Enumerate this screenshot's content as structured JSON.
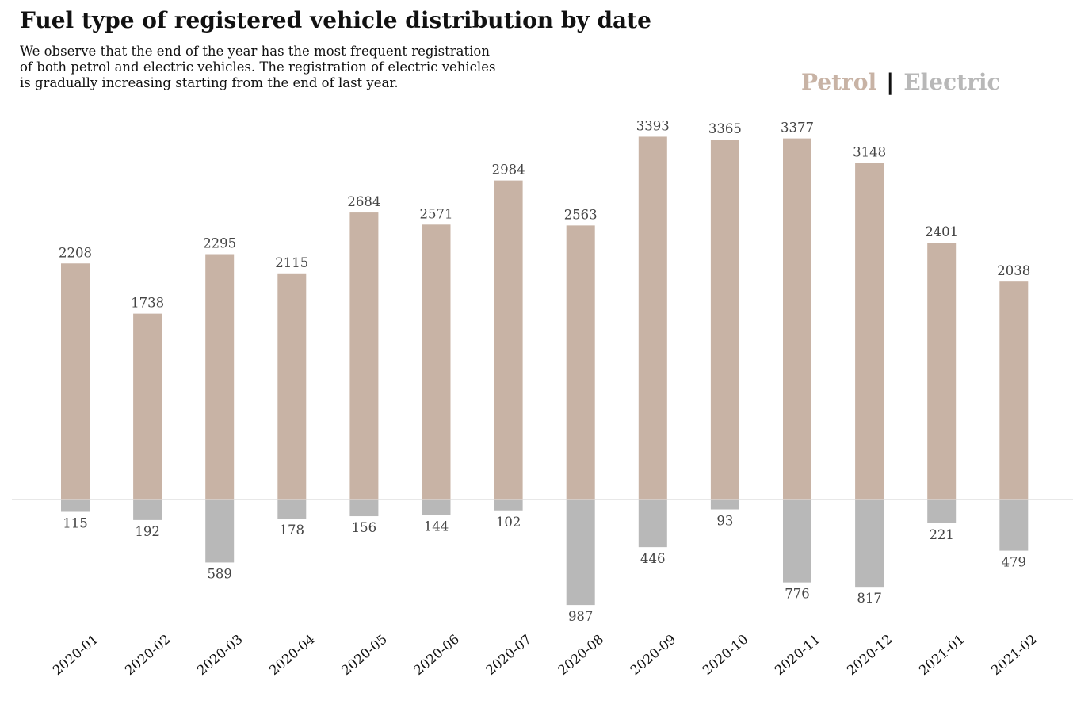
{
  "title": "Fuel type of registered vehicle distribution by date",
  "subtitle_lines": [
    "We observe that the end of the year has the most frequent registration",
    "of both petrol and electric vehicles. The registration of electric vehicles",
    "is gradually increasing starting from the end of last year."
  ],
  "legend": {
    "petrol": "Petrol",
    "separator": "|",
    "electric": "Electric"
  },
  "colors": {
    "petrol": "#c8b3a5",
    "electric": "#b8b8b8",
    "baseline": "#d9d9d9",
    "label": "#444444"
  },
  "chart_data": {
    "type": "bar",
    "categories": [
      "2020-01",
      "2020-02",
      "2020-03",
      "2020-04",
      "2020-05",
      "2020-06",
      "2020-07",
      "2020-08",
      "2020-09",
      "2020-10",
      "2020-11",
      "2020-12",
      "2021-01",
      "2021-02"
    ],
    "series": [
      {
        "name": "Petrol",
        "direction": "up",
        "values": [
          2208,
          1738,
          2295,
          2115,
          2684,
          2571,
          2984,
          2563,
          3393,
          3365,
          3377,
          3148,
          2401,
          2038
        ]
      },
      {
        "name": "Electric",
        "direction": "down",
        "values": [
          115,
          192,
          589,
          178,
          156,
          144,
          102,
          987,
          446,
          93,
          776,
          817,
          221,
          479
        ]
      }
    ],
    "xlabel": "",
    "ylabel": "",
    "grid": false,
    "legend_position": "top-right",
    "x_tick_rotation": 40
  }
}
